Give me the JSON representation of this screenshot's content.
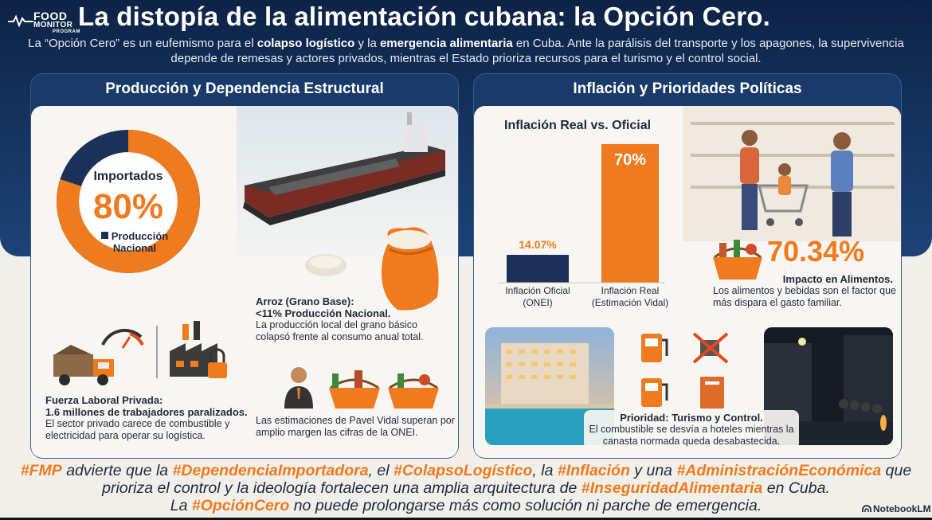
{
  "logo": {
    "line1": "FOOD",
    "line2": "MONITOR",
    "line3": "PROGRAM"
  },
  "title": "La distopía de la alimentación cubana: la Opción Cero.",
  "intro": {
    "p1": "La “Opción Cero” es un eufemismo para el ",
    "b1": "colapso logístico",
    "p2": " y la ",
    "b2": "emergencia alimentaria",
    "p3": " en Cuba. Ante la parálisis del transporte y los apagones, la supervivencia depende de remesas y actores privados, mientras el Estado prioriza recursos para el turismo y el control social."
  },
  "left_panel": {
    "title": "Producción y Dependencia Estructural",
    "donut": {
      "label": "Importados",
      "value_text": "80%",
      "imported_fraction": 0.8,
      "secondary_label": "Producción Nacional",
      "colors": {
        "imported": "#f07a1e",
        "national": "#1b3158"
      }
    },
    "rice": {
      "heading": "Arroz (Grano Base):",
      "subheading": "<11% Producción Nacional.",
      "body": "La producción local del grano básico colapsó frente al consumo anual total."
    },
    "labor": {
      "heading": "Fuerza Laboral Privada:",
      "subheading": "1.6 millones de trabajadores paralizados.",
      "body": "El sector privado carece de combustible y electricidad para operar su logística."
    },
    "pavel": {
      "body": "Las estimaciones de Pavel Vidal superan por amplio margen las cifras de la ONEI."
    },
    "icons": [
      "cargo-ship-icon",
      "rice-sack-icon",
      "truck-icon",
      "gauge-icon",
      "factory-icon",
      "padlock-icon",
      "person-icon",
      "food-basket-icon"
    ]
  },
  "right_panel": {
    "title": "Inflación y Prioridades Políticas",
    "food_impact": {
      "value_text": "70.34%",
      "heading": "Impacto en Alimentos.",
      "body": "Los alimentos y bebidas son el factor que más dispara el gasto familiar."
    },
    "priority": {
      "heading": "Prioridad: Turismo y Control.",
      "body": "El combustible se desvía a hoteles mientras la canasta normada queda desabastecida."
    },
    "icons": [
      "food-basket-icon",
      "fuel-pump-icon",
      "no-fuel-icon",
      "book-icon",
      "shopping-cart-icon"
    ]
  },
  "chart_data": {
    "type": "bar",
    "title": "Inflación Real vs. Oficial",
    "categories": [
      "Inflación Oficial (ONEI)",
      "Inflación Real (Estimación Vidal)"
    ],
    "category_lines": [
      [
        "Inflación Oficial",
        "(ONEI)"
      ],
      [
        "Inflación Real",
        "(Estimación Vidal)"
      ]
    ],
    "values": [
      14.07,
      70
    ],
    "value_labels": [
      "14.07%",
      "70%"
    ],
    "colors": [
      "#1b3158",
      "#f07a1e"
    ],
    "ylim": [
      0,
      70
    ]
  },
  "footer": {
    "t1": "#FMP",
    "s1": " advierte que la ",
    "t2": "#DependenciaImportadora",
    "s2": ", el ",
    "t3": "#ColapsoLogístico",
    "s3": ", la ",
    "t4": "#Inflación",
    "s4": " y una ",
    "t5": "#AdministraciónEconómica",
    "s5": " que prioriza el control y la ideología fortalecen una amplia arquitectura de ",
    "t6": "#InseguridadAlimentaria",
    "s6": " en Cuba.",
    "s7": "La ",
    "t7": "#OpciónCero",
    "s8": " no puede prolongarse más como solución ni parche de emergencia."
  },
  "watermark": "NotebookLM"
}
